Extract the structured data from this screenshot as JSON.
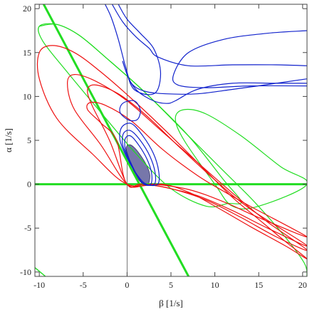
{
  "chart_data": {
    "type": "contour",
    "xlabel": "β [1/s]",
    "ylabel": "α [1/s]",
    "xlim": [
      -10.5,
      20.5
    ],
    "ylim": [
      -10.5,
      20.5
    ],
    "xticks": [
      -10,
      -5,
      0,
      5,
      10,
      15,
      20
    ],
    "yticks": [
      -10,
      -5,
      0,
      5,
      10,
      15,
      20
    ],
    "xtick_labels": [
      "-10",
      "-5",
      "0",
      "5",
      "10",
      "15",
      "20"
    ],
    "ytick_labels": [
      "-10",
      "-5",
      "0",
      "5",
      "10",
      "15",
      "20"
    ],
    "grid": false,
    "frame": "box",
    "colors": {
      "green": "#22dd22",
      "red": "#ee1111",
      "blue": "#1122cc",
      "fill": "#7777aa",
      "axis": "#555555"
    },
    "series": [
      {
        "color": "green",
        "kind": "line",
        "width": 3,
        "points": [
          [
            -10.5,
            0
          ],
          [
            20.5,
            0
          ]
        ]
      },
      {
        "color": "green",
        "kind": "line",
        "width": 3,
        "points": [
          [
            -9.5,
            20.5
          ],
          [
            7,
            -10.5
          ]
        ]
      },
      {
        "color": "green",
        "kind": "line",
        "width": 1.4,
        "points": [
          [
            -10.5,
            -9.5
          ],
          [
            -9.3,
            -10.5
          ]
        ]
      },
      {
        "color": "green",
        "kind": "curve",
        "width": 1.2,
        "points": [
          [
            -10,
            18
          ],
          [
            -8,
            18.2
          ],
          [
            -5.5,
            17
          ],
          [
            -2.5,
            14.5
          ],
          [
            2,
            10.5
          ],
          [
            7,
            5.5
          ],
          [
            11,
            1.5
          ],
          [
            14.5,
            -2
          ],
          [
            18,
            -6
          ],
          [
            20.2,
            -9
          ],
          [
            20.5,
            -10.5
          ]
        ]
      },
      {
        "color": "green",
        "kind": "closed",
        "width": 1.2,
        "points": [
          [
            -10,
            18
          ],
          [
            -9.6,
            16.3
          ],
          [
            -7,
            13
          ],
          [
            -3,
            8.2
          ],
          [
            1,
            3.5
          ],
          [
            5,
            -0.5
          ],
          [
            9,
            -2.5
          ],
          [
            11.5,
            -2.2
          ],
          [
            13,
            -2
          ],
          [
            11,
            0.5
          ],
          [
            7,
            5.5
          ],
          [
            2,
            10.5
          ],
          [
            -2.5,
            14.5
          ],
          [
            -5.5,
            17
          ],
          [
            -8,
            18.2
          ]
        ]
      },
      {
        "color": "green",
        "kind": "closed",
        "width": 1.2,
        "points": [
          [
            10,
            0
          ],
          [
            6.5,
            5
          ],
          [
            5.5,
            7.5
          ],
          [
            6.5,
            8.5
          ],
          [
            9,
            8
          ],
          [
            13,
            5.5
          ],
          [
            17.5,
            2
          ],
          [
            20.5,
            0
          ],
          [
            15,
            -2.5
          ],
          [
            12,
            -2.5
          ]
        ]
      },
      {
        "color": "red",
        "kind": "closed",
        "width": 1.2,
        "points": [
          [
            0,
            0
          ],
          [
            -4,
            3.5
          ],
          [
            -8,
            7.5
          ],
          [
            -10,
            12
          ],
          [
            -10,
            15
          ],
          [
            -8.5,
            15.8
          ],
          [
            -6,
            15
          ],
          [
            -3,
            12.8
          ],
          [
            1,
            9.3
          ],
          [
            5,
            5.5
          ],
          [
            9,
            1.5
          ],
          [
            12,
            -1.5
          ],
          [
            15,
            -4
          ],
          [
            18,
            -6.5
          ],
          [
            20.5,
            -8.5
          ],
          [
            18,
            -7
          ],
          [
            14,
            -4.8
          ],
          [
            10,
            -2.5
          ],
          [
            7,
            -0.9
          ],
          [
            4,
            0
          ]
        ]
      },
      {
        "color": "red",
        "kind": "closed",
        "width": 1.2,
        "points": [
          [
            0,
            0
          ],
          [
            -3,
            4.5
          ],
          [
            -6,
            8.5
          ],
          [
            -6.8,
            11.5
          ],
          [
            -6,
            12.5
          ],
          [
            -3.5,
            11.7
          ],
          [
            0,
            9.5
          ],
          [
            4,
            6
          ],
          [
            8,
            2.5
          ],
          [
            12,
            -1
          ],
          [
            16,
            -4.3
          ],
          [
            20.5,
            -7.5
          ],
          [
            17,
            -6
          ],
          [
            13,
            -3.8
          ],
          [
            9,
            -1.8
          ],
          [
            5,
            -0.5
          ],
          [
            2,
            0
          ]
        ]
      },
      {
        "color": "red",
        "kind": "closed",
        "width": 1.2,
        "points": [
          [
            0,
            0
          ],
          [
            -2,
            5
          ],
          [
            -4,
            9
          ],
          [
            -4.5,
            10.8
          ],
          [
            -3.5,
            11.3
          ],
          [
            -1,
            10.3
          ],
          [
            2,
            8
          ],
          [
            6,
            4.2
          ],
          [
            10,
            0.5
          ],
          [
            14,
            -2.8
          ],
          [
            20.5,
            -7
          ],
          [
            16,
            -5
          ],
          [
            12,
            -3
          ],
          [
            8,
            -1.3
          ],
          [
            4,
            -0.3
          ],
          [
            1.5,
            0
          ]
        ]
      },
      {
        "color": "red",
        "kind": "closed",
        "width": 1.2,
        "points": [
          [
            0,
            0
          ],
          [
            -1.2,
            5
          ],
          [
            -3,
            7
          ],
          [
            -4.5,
            8.5
          ],
          [
            -4.2,
            9.3
          ],
          [
            -2.5,
            9
          ],
          [
            0.5,
            7.2
          ],
          [
            4,
            4
          ],
          [
            8,
            1
          ],
          [
            11,
            -0.8
          ],
          [
            14,
            -2.5
          ],
          [
            20.5,
            -6
          ],
          [
            15,
            -3.8
          ],
          [
            11,
            -2
          ],
          [
            7,
            -0.6
          ],
          [
            3,
            0
          ]
        ]
      },
      {
        "color": "blue",
        "kind": "curve",
        "width": 1.2,
        "points": [
          [
            -2.5,
            20.5
          ],
          [
            -1.8,
            19
          ],
          [
            -1,
            16.5
          ],
          [
            -0.2,
            13.5
          ],
          [
            0.5,
            11.5
          ],
          [
            2,
            10.6
          ],
          [
            4.5,
            10.3
          ],
          [
            8,
            10.3
          ],
          [
            12,
            10.8
          ],
          [
            17,
            11.5
          ],
          [
            20.5,
            12
          ]
        ]
      },
      {
        "color": "blue",
        "kind": "curve",
        "width": 1.2,
        "points": [
          [
            -1.7,
            20.5
          ],
          [
            -0.5,
            18.5
          ],
          [
            1,
            16.8
          ],
          [
            2.5,
            15.5
          ],
          [
            3.5,
            14.5
          ],
          [
            7,
            13.5
          ],
          [
            12,
            13.6
          ],
          [
            17,
            13.6
          ],
          [
            20.5,
            13.5
          ]
        ]
      },
      {
        "color": "blue",
        "kind": "curve",
        "width": 1.2,
        "points": [
          [
            -1,
            20.5
          ],
          [
            0,
            18.8
          ],
          [
            1.5,
            17.2
          ],
          [
            3,
            15.5
          ],
          [
            3.8,
            13
          ],
          [
            3.5,
            10.8
          ],
          [
            2.5,
            10.2
          ],
          [
            0.8,
            10.8
          ],
          [
            0,
            12.5
          ],
          [
            -0.5,
            14
          ],
          [
            0.2,
            12
          ],
          [
            1.2,
            10.6
          ],
          [
            3,
            9.5
          ],
          [
            4.5,
            9.2
          ],
          [
            5.5,
            9.5
          ],
          [
            8,
            10.8
          ],
          [
            12,
            11.5
          ],
          [
            17,
            11.5
          ],
          [
            20.5,
            11.5
          ]
        ]
      },
      {
        "color": "blue",
        "kind": "curve",
        "width": 1.2,
        "points": [
          [
            20.5,
            17.5
          ],
          [
            16,
            17.2
          ],
          [
            11,
            16.5
          ],
          [
            7,
            15
          ],
          [
            5.3,
            12.5
          ],
          [
            5.8,
            11.3
          ],
          [
            9,
            11
          ],
          [
            14,
            11.2
          ],
          [
            20.5,
            11.2
          ]
        ]
      },
      {
        "color": "blue",
        "kind": "closed",
        "width": 1.2,
        "points": [
          [
            -0.8,
            8.2
          ],
          [
            -0.5,
            9.2
          ],
          [
            0.8,
            9.5
          ],
          [
            1.5,
            8.5
          ],
          [
            1.2,
            7.4
          ],
          [
            0.2,
            7.3
          ]
        ]
      },
      {
        "color": "blue",
        "kind": "closed",
        "width": 1.2,
        "points": [
          [
            -0.6,
            6.5
          ],
          [
            -0.8,
            5
          ],
          [
            0,
            3
          ],
          [
            1.2,
            1
          ],
          [
            2.2,
            0
          ],
          [
            3.5,
            0
          ],
          [
            3.6,
            1.5
          ],
          [
            3,
            3.5
          ],
          [
            1.8,
            5.5
          ],
          [
            0.5,
            6.9
          ]
        ]
      },
      {
        "color": "blue",
        "kind": "closed",
        "width": 1.2,
        "points": [
          [
            -0.4,
            5.8
          ],
          [
            -0.5,
            4.5
          ],
          [
            0.2,
            2.8
          ],
          [
            1.2,
            0.9
          ],
          [
            2,
            0
          ],
          [
            3.1,
            0
          ],
          [
            3.2,
            1.3
          ],
          [
            2.6,
            3.2
          ],
          [
            1.5,
            5
          ],
          [
            0.4,
            6.1
          ]
        ]
      },
      {
        "color": "blue",
        "kind": "closed",
        "width": 1.2,
        "points": [
          [
            -0.2,
            5.2
          ],
          [
            -0.2,
            4
          ],
          [
            0.4,
            2.5
          ],
          [
            1.2,
            0.9
          ],
          [
            1.9,
            0
          ],
          [
            2.7,
            0
          ],
          [
            2.8,
            1.2
          ],
          [
            2.3,
            2.8
          ],
          [
            1.3,
            4.5
          ],
          [
            0.4,
            5.5
          ]
        ]
      },
      {
        "color": "fill",
        "kind": "filled",
        "width": 0.8,
        "points": [
          [
            -0.1,
            4.2
          ],
          [
            0.1,
            3.3
          ],
          [
            0.9,
            1.2
          ],
          [
            1.8,
            0
          ],
          [
            2.4,
            0
          ],
          [
            2.6,
            1
          ],
          [
            2.3,
            2
          ],
          [
            1.6,
            3.2
          ],
          [
            0.9,
            4.1
          ],
          [
            0.3,
            4.5
          ]
        ]
      }
    ]
  }
}
